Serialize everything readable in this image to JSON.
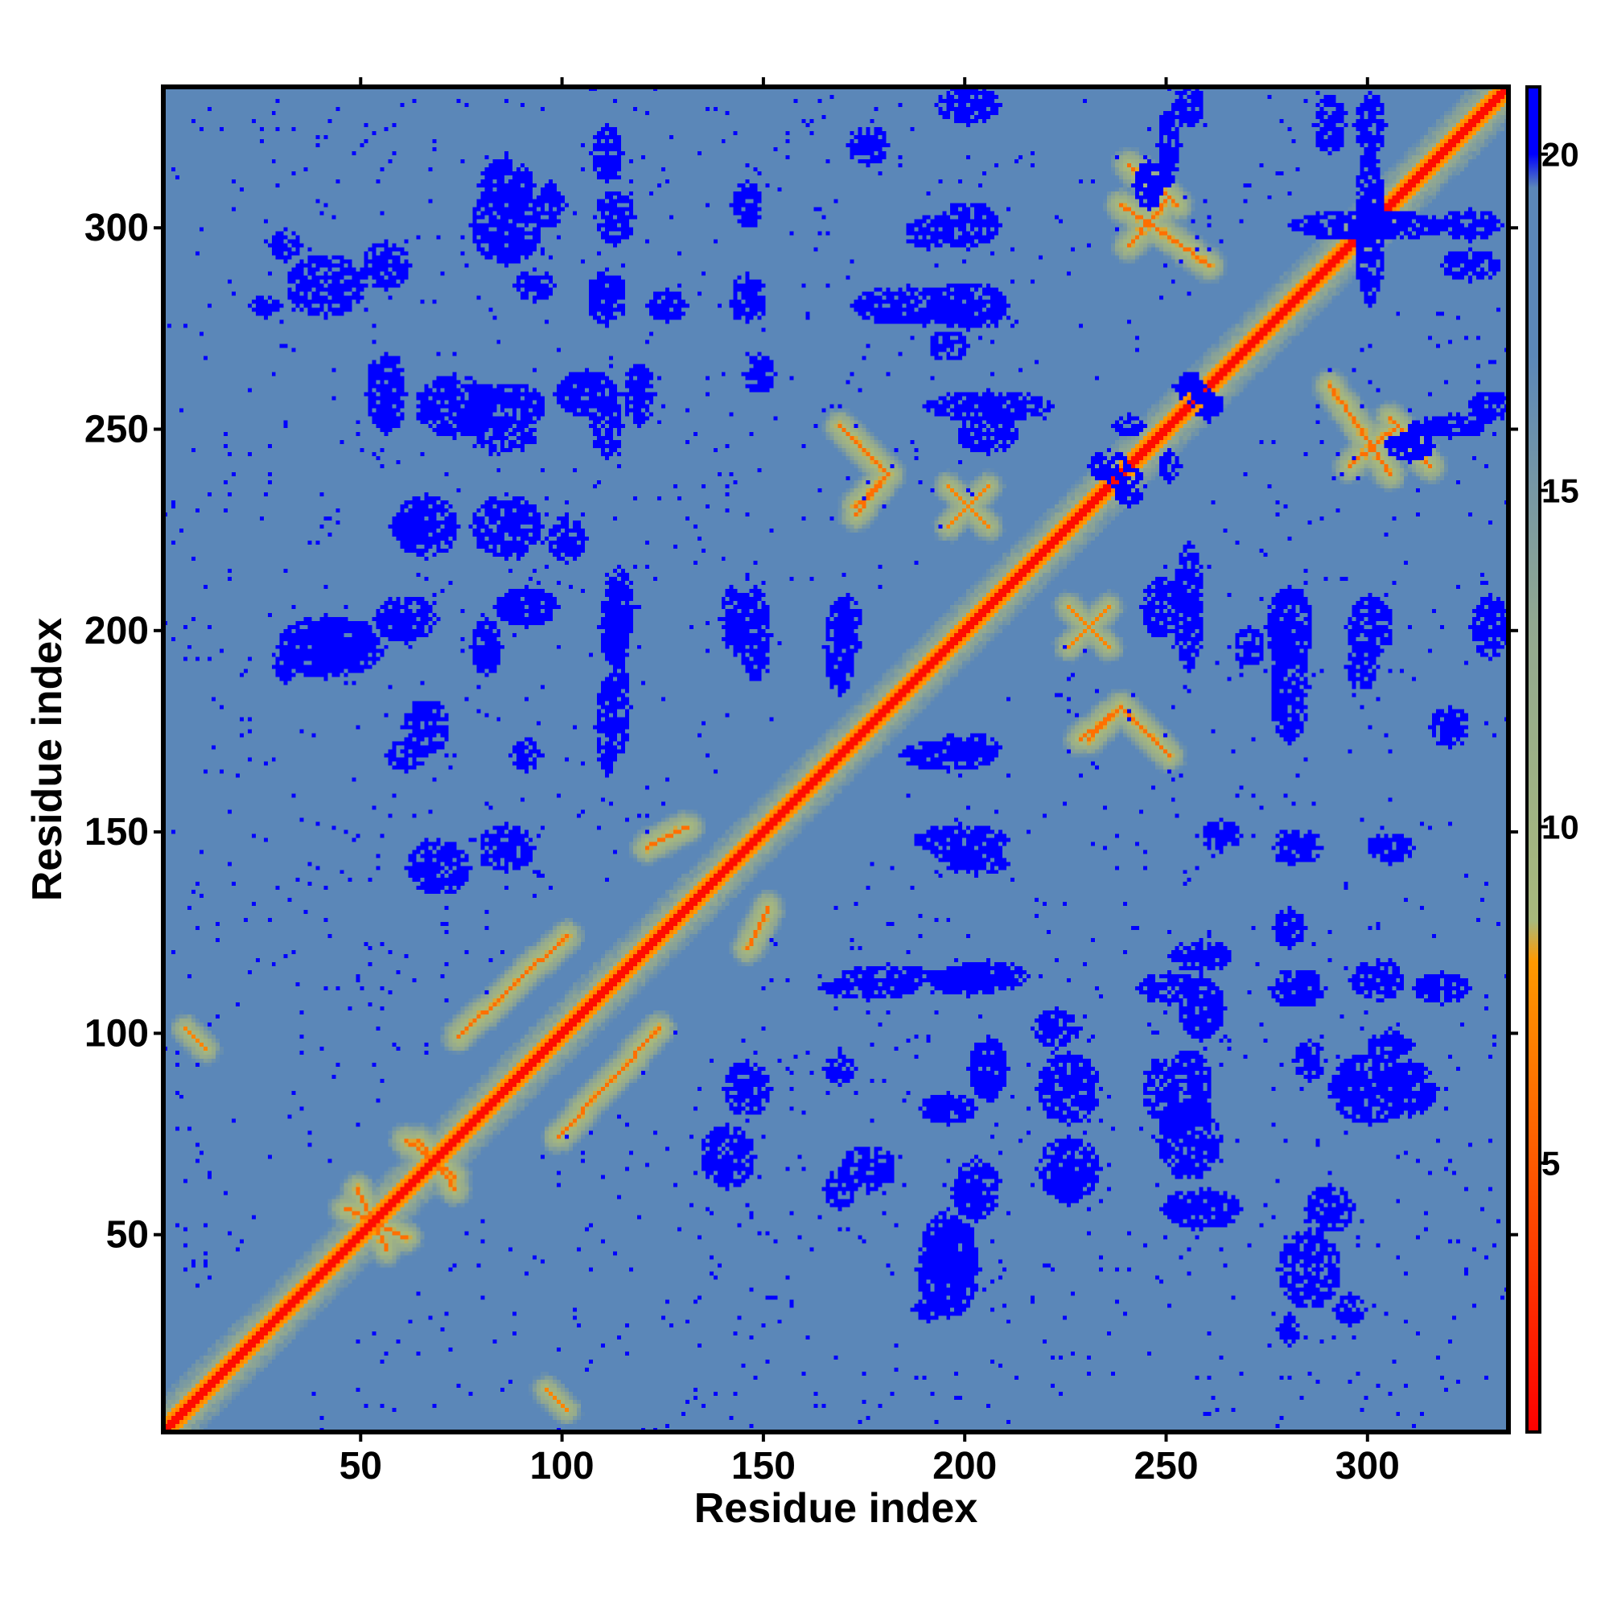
{
  "chart_data": {
    "type": "heatmap",
    "title": "",
    "xlabel": "Residue index",
    "ylabel": "Residue index",
    "n_residues": 335,
    "xlim": [
      1,
      335
    ],
    "ylim": [
      1,
      335
    ],
    "x_ticks": [
      50,
      100,
      150,
      200,
      250,
      300
    ],
    "y_ticks": [
      50,
      100,
      150,
      200,
      250,
      300
    ],
    "colorbar": {
      "ticks": [
        5,
        10,
        15,
        20
      ],
      "range": [
        1,
        21
      ],
      "stops": [
        {
          "value": 1,
          "color": "#ff0000"
        },
        {
          "value": 5,
          "color": "#ff5a00"
        },
        {
          "value": 8,
          "color": "#ff9900"
        },
        {
          "value": 8.6,
          "color": "#a8b97c"
        },
        {
          "value": 13,
          "color": "#92a890"
        },
        {
          "value": 17,
          "color": "#5b87b8"
        },
        {
          "value": 19.5,
          "color": "#5b87b8"
        },
        {
          "value": 20,
          "color": "#0000ff"
        },
        {
          "value": 21,
          "color": "#0000ff"
        }
      ]
    },
    "colors": {
      "background_distance": "#5b87b8",
      "far_distance": "#0000ff",
      "contact": "#ff0000",
      "near_contact": "#ff9900",
      "intermediate": "#a8b97c"
    },
    "contact_segments_approx": [
      {
        "from": [
          55,
          45
        ],
        "to": [
          48,
          60
        ],
        "value": 6
      },
      {
        "from": [
          63,
          72
        ],
        "to": [
          72,
          60
        ],
        "value": 6
      },
      {
        "from": [
          98,
          73
        ],
        "to": [
          123,
          100
        ],
        "value": 6
      },
      {
        "from": [
          120,
          145
        ],
        "to": [
          130,
          150
        ],
        "value": 6
      },
      {
        "from": [
          95,
          10
        ],
        "to": [
          100,
          5
        ],
        "value": 7
      },
      {
        "from": [
          170,
          248
        ],
        "to": [
          180,
          238
        ],
        "value": 6
      },
      {
        "from": [
          172,
          228
        ],
        "to": [
          180,
          238
        ],
        "value": 6
      },
      {
        "from": [
          230,
          172
        ],
        "to": [
          238,
          180
        ],
        "value": 6
      },
      {
        "from": [
          238,
          180
        ],
        "to": [
          250,
          168
        ],
        "value": 6
      },
      {
        "from": [
          238,
          305
        ],
        "to": [
          250,
          297
        ],
        "value": 6
      },
      {
        "from": [
          250,
          297
        ],
        "to": [
          260,
          290
        ],
        "value": 6
      },
      {
        "from": [
          295,
          240
        ],
        "to": [
          307,
          250
        ],
        "value": 6
      },
      {
        "from": [
          305,
          252
        ],
        "to": [
          315,
          240
        ],
        "value": 6
      },
      {
        "from": [
          225,
          205
        ],
        "to": [
          235,
          195
        ],
        "value": 7
      },
      {
        "from": [
          205,
          235
        ],
        "to": [
          195,
          225
        ],
        "value": 7
      }
    ],
    "far_blobs_approx": [
      [
        40,
        285,
        10,
        8
      ],
      [
        55,
        290,
        6,
        6
      ],
      [
        85,
        300,
        9,
        10
      ],
      [
        96,
        305,
        4,
        6
      ],
      [
        112,
        302,
        5,
        7
      ],
      [
        62,
        225,
        6,
        5
      ],
      [
        85,
        225,
        9,
        8
      ],
      [
        100,
        222,
        5,
        6
      ],
      [
        85,
        255,
        10,
        6
      ],
      [
        105,
        258,
        8,
        6
      ],
      [
        40,
        195,
        12,
        8
      ],
      [
        60,
        202,
        8,
        6
      ],
      [
        90,
        205,
        8,
        5
      ],
      [
        112,
        200,
        4,
        10
      ],
      [
        142,
        202,
        4,
        9
      ],
      [
        170,
        200,
        4,
        8
      ],
      [
        110,
        175,
        3,
        12
      ],
      [
        60,
        168,
        5,
        4
      ],
      [
        90,
        168,
        4,
        4
      ],
      [
        85,
        145,
        7,
        6
      ],
      [
        185,
        280,
        14,
        5
      ],
      [
        190,
        298,
        6,
        4
      ],
      [
        205,
        255,
        16,
        4
      ],
      [
        195,
        270,
        5,
        4
      ],
      [
        145,
        280,
        5,
        4
      ],
      [
        125,
        280,
        5,
        4
      ],
      [
        118,
        258,
        4,
        8
      ],
      [
        175,
        320,
        5,
        5
      ],
      [
        250,
        320,
        3,
        10
      ],
      [
        290,
        325,
        4,
        8
      ],
      [
        300,
        300,
        20,
        4
      ],
      [
        325,
        300,
        8,
        4
      ],
      [
        330,
        255,
        6,
        4
      ],
      [
        260,
        255,
        4,
        4
      ],
      [
        235,
        240,
        5,
        4
      ],
      [
        250,
        240,
        3,
        4
      ],
      [
        310,
        245,
        6,
        4
      ],
      [
        248,
        205,
        5,
        8
      ],
      [
        280,
        200,
        6,
        10
      ],
      [
        300,
        200,
        6,
        8
      ],
      [
        330,
        200,
        5,
        8
      ],
      [
        195,
        168,
        12,
        4
      ],
      [
        198,
        147,
        12,
        4
      ],
      [
        263,
        148,
        5,
        4
      ],
      [
        285,
        145,
        3,
        4
      ],
      [
        305,
        145,
        6,
        4
      ],
      [
        180,
        113,
        12,
        3
      ],
      [
        205,
        113,
        10,
        4
      ],
      [
        250,
        110,
        8,
        4
      ],
      [
        282,
        110,
        7,
        5
      ],
      [
        318,
        110,
        7,
        4
      ],
      [
        205,
        90,
        5,
        7
      ],
      [
        195,
        80,
        7,
        4
      ],
      [
        248,
        85,
        5,
        8
      ],
      [
        285,
        92,
        4,
        5
      ],
      [
        310,
        85,
        7,
        7
      ],
      [
        255,
        72,
        8,
        10
      ],
      [
        258,
        55,
        10,
        5
      ],
      [
        225,
        65,
        8,
        8
      ],
      [
        175,
        65,
        7,
        6
      ],
      [
        140,
        68,
        7,
        8
      ],
      [
        195,
        45,
        7,
        10
      ],
      [
        190,
        30,
        4,
        3
      ],
      [
        280,
        25,
        3,
        4
      ],
      [
        295,
        30,
        4,
        4
      ]
    ]
  }
}
